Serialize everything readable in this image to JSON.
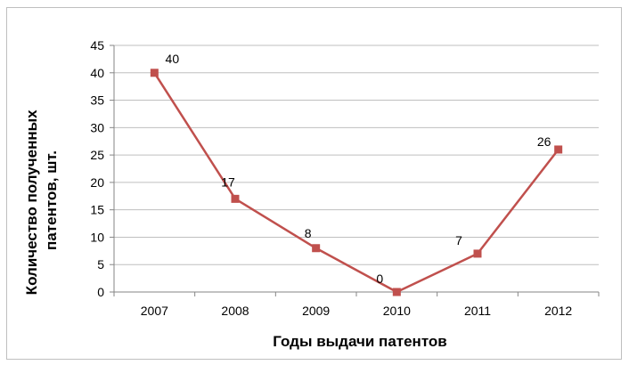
{
  "chart_data": {
    "type": "line",
    "categories": [
      "2007",
      "2008",
      "2009",
      "2010",
      "2011",
      "2012"
    ],
    "values": [
      40,
      17,
      8,
      0,
      7,
      26
    ],
    "data_labels": [
      "40",
      "17",
      "8",
      "0",
      "7",
      "26"
    ],
    "xlabel": "Годы выдачи патентов",
    "ylabel_lines": [
      "Количество полученных",
      "патентов, шт."
    ],
    "ylim": [
      0,
      45
    ],
    "yticks": [
      "0",
      "5",
      "10",
      "15",
      "20",
      "25",
      "30",
      "35",
      "40",
      "45"
    ],
    "grid": true,
    "legend": "none",
    "colors": {
      "series": "#c0504d",
      "grid": "#bfbfbf",
      "axis": "#868686"
    }
  }
}
